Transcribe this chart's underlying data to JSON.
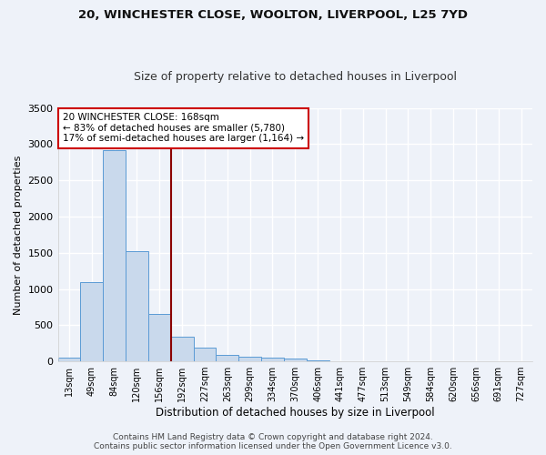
{
  "title_line1": "20, WINCHESTER CLOSE, WOOLTON, LIVERPOOL, L25 7YD",
  "title_line2": "Size of property relative to detached houses in Liverpool",
  "xlabel": "Distribution of detached houses by size in Liverpool",
  "ylabel": "Number of detached properties",
  "bar_color": "#c9d9ec",
  "bar_edge_color": "#5b9bd5",
  "categories": [
    "13sqm",
    "49sqm",
    "84sqm",
    "120sqm",
    "156sqm",
    "192sqm",
    "227sqm",
    "263sqm",
    "299sqm",
    "334sqm",
    "370sqm",
    "406sqm",
    "441sqm",
    "477sqm",
    "513sqm",
    "549sqm",
    "584sqm",
    "620sqm",
    "656sqm",
    "691sqm",
    "727sqm"
  ],
  "values": [
    50,
    1100,
    2920,
    1520,
    650,
    340,
    185,
    95,
    65,
    50,
    35,
    10,
    5,
    5,
    5,
    5,
    5,
    5,
    5,
    5,
    5
  ],
  "ylim": [
    0,
    3500
  ],
  "yticks": [
    0,
    500,
    1000,
    1500,
    2000,
    2500,
    3000,
    3500
  ],
  "vline_color": "#8b0000",
  "annotation_text": "20 WINCHESTER CLOSE: 168sqm\n← 83% of detached houses are smaller (5,780)\n17% of semi-detached houses are larger (1,164) →",
  "annotation_box_color": "#ffffff",
  "annotation_box_edgecolor": "#cc0000",
  "footer": "Contains HM Land Registry data © Crown copyright and database right 2024.\nContains public sector information licensed under the Open Government Licence v3.0.",
  "background_color": "#eef2f9",
  "grid_color": "#ffffff"
}
